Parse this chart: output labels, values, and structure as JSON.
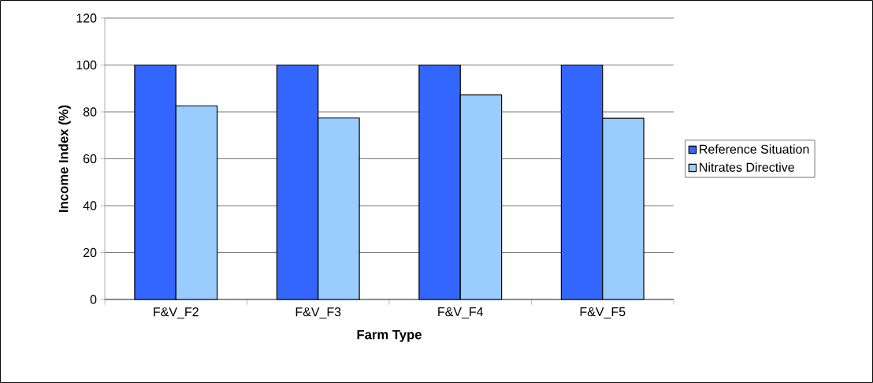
{
  "chart_data": {
    "type": "bar",
    "xlabel": "Farm Type",
    "ylabel": "Income Index (%)",
    "categories": [
      "F&V_F2",
      "F&V_F3",
      "F&V_F4",
      "F&V_F5"
    ],
    "series": [
      {
        "name": "Reference Situation",
        "color": "#3366ff",
        "values": [
          100,
          100,
          100,
          100
        ]
      },
      {
        "name": "Nitrates Directive",
        "color": "#99ccff",
        "values": [
          82.6,
          77.4,
          87.3,
          77.3
        ]
      }
    ],
    "ylim": [
      0,
      120
    ],
    "yticks": [
      0,
      20,
      40,
      60,
      80,
      100,
      120
    ],
    "grid": "y",
    "legend": "right"
  }
}
